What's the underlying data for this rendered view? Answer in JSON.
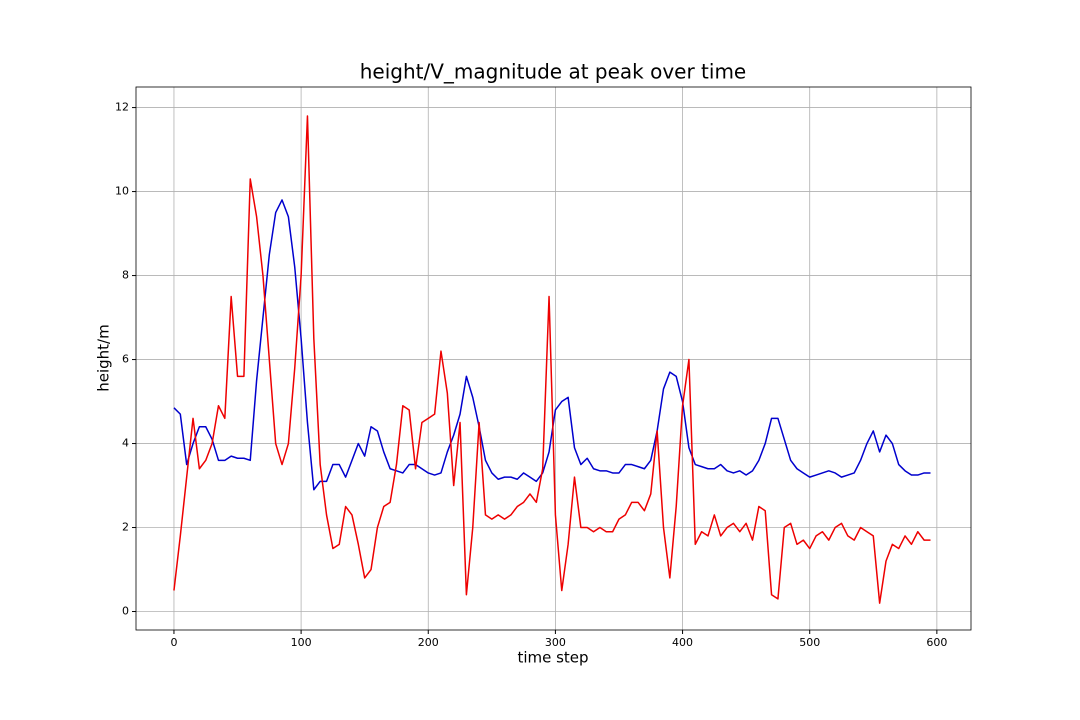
{
  "chart_data": {
    "type": "line",
    "title": "height/V_magnitude at peak over time",
    "x_label": "time step",
    "y_label": "height/m",
    "x": [
      0,
      5,
      10,
      15,
      20,
      25,
      30,
      35,
      40,
      45,
      50,
      55,
      60,
      65,
      70,
      75,
      80,
      85,
      90,
      95,
      100,
      105,
      110,
      115,
      120,
      125,
      130,
      135,
      140,
      145,
      150,
      155,
      160,
      165,
      170,
      175,
      180,
      185,
      190,
      195,
      200,
      205,
      210,
      215,
      220,
      225,
      230,
      235,
      240,
      245,
      250,
      255,
      260,
      265,
      270,
      275,
      280,
      285,
      290,
      295,
      300,
      305,
      310,
      315,
      320,
      325,
      330,
      335,
      340,
      345,
      350,
      355,
      360,
      365,
      370,
      375,
      380,
      385,
      390,
      395,
      400,
      405,
      410,
      415,
      420,
      425,
      430,
      435,
      440,
      445,
      450,
      455,
      460,
      465,
      470,
      475,
      480,
      485,
      490,
      495,
      500,
      505,
      510,
      515,
      520,
      525,
      530,
      535,
      540,
      545,
      550,
      555,
      560,
      565,
      570,
      575,
      580,
      585,
      590,
      595
    ],
    "series": [
      {
        "color": "#0000cd",
        "values": [
          4.85,
          4.7,
          3.5,
          4.0,
          4.4,
          4.4,
          4.1,
          3.6,
          3.6,
          3.7,
          3.65,
          3.65,
          3.6,
          5.5,
          7.0,
          8.5,
          9.5,
          9.8,
          9.4,
          8.2,
          6.5,
          4.5,
          2.9,
          3.1,
          3.1,
          3.5,
          3.5,
          3.2,
          3.6,
          4.0,
          3.7,
          4.4,
          4.3,
          3.8,
          3.4,
          3.35,
          3.3,
          3.5,
          3.5,
          3.4,
          3.3,
          3.25,
          3.3,
          3.8,
          4.2,
          4.7,
          5.6,
          5.1,
          4.4,
          3.6,
          3.3,
          3.15,
          3.2,
          3.2,
          3.15,
          3.3,
          3.2,
          3.1,
          3.3,
          3.8,
          4.8,
          5.0,
          5.1,
          3.9,
          3.5,
          3.65,
          3.4,
          3.35,
          3.35,
          3.3,
          3.3,
          3.5,
          3.5,
          3.45,
          3.4,
          3.6,
          4.3,
          5.3,
          5.7,
          5.6,
          5.0,
          3.9,
          3.5,
          3.45,
          3.4,
          3.4,
          3.5,
          3.35,
          3.3,
          3.35,
          3.25,
          3.35,
          3.6,
          4.0,
          4.6,
          4.6,
          4.1,
          3.6,
          3.4,
          3.3,
          3.2,
          3.25,
          3.3,
          3.35,
          3.3,
          3.2,
          3.25,
          3.3,
          3.6,
          4.0,
          4.3,
          3.8,
          4.2,
          4.0,
          3.5,
          3.35,
          3.25,
          3.25,
          3.3,
          3.3
        ]
      },
      {
        "color": "#ee0000",
        "values": [
          0.5,
          1.8,
          3.2,
          4.6,
          3.4,
          3.6,
          4.0,
          4.9,
          4.6,
          7.5,
          5.6,
          5.6,
          10.3,
          9.4,
          8.0,
          6.0,
          4.0,
          3.5,
          4.0,
          5.8,
          8.0,
          11.8,
          6.5,
          3.5,
          2.3,
          1.5,
          1.6,
          2.5,
          2.3,
          1.6,
          0.8,
          1.0,
          2.0,
          2.5,
          2.6,
          3.5,
          4.9,
          4.8,
          3.4,
          4.5,
          4.6,
          4.7,
          6.2,
          5.2,
          3.0,
          4.5,
          0.4,
          2.0,
          4.5,
          2.3,
          2.2,
          2.3,
          2.2,
          2.3,
          2.5,
          2.6,
          2.8,
          2.6,
          3.4,
          7.5,
          2.3,
          0.5,
          1.6,
          3.2,
          2.0,
          2.0,
          1.9,
          2.0,
          1.9,
          1.9,
          2.2,
          2.3,
          2.6,
          2.6,
          2.4,
          2.8,
          4.3,
          2.0,
          0.8,
          2.5,
          4.9,
          6.0,
          1.6,
          1.9,
          1.8,
          2.3,
          1.8,
          2.0,
          2.1,
          1.9,
          2.1,
          1.7,
          2.5,
          2.4,
          0.4,
          0.3,
          2.0,
          2.1,
          1.6,
          1.7,
          1.5,
          1.8,
          1.9,
          1.7,
          2.0,
          2.1,
          1.8,
          1.7,
          2.0,
          1.9,
          1.8,
          0.2,
          1.2,
          1.6,
          1.5,
          1.8,
          1.6,
          1.9,
          1.7,
          1.7
        ]
      }
    ],
    "xlim": [
      -29.85,
      626.85
    ],
    "ylim": [
      -0.44,
      12.49
    ],
    "xticks": [
      0,
      100,
      200,
      300,
      400,
      500,
      600
    ],
    "yticks": [
      0,
      2,
      4,
      6,
      8,
      10,
      12
    ],
    "grid": true
  }
}
